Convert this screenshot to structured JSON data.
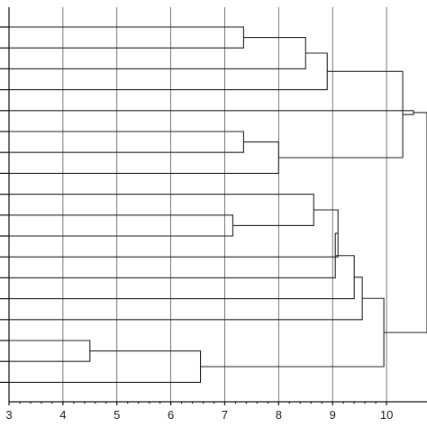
{
  "chart_data": {
    "type": "dendrogram",
    "orientation": "horizontal",
    "title": "",
    "xlabel": "",
    "ylabel": "",
    "xlim": [
      3,
      10.75
    ],
    "x_ticks": [
      3,
      4,
      5,
      6,
      7,
      8,
      9,
      10
    ],
    "grid": true,
    "leaf_count": 18,
    "link_color": "#222222",
    "merges": [
      {
        "id": "m1",
        "left": 0,
        "right": 1,
        "height": 7.35
      },
      {
        "id": "m2",
        "left": "m1",
        "right": 2,
        "height": 8.5
      },
      {
        "id": "m3",
        "left": "m2",
        "right": 3,
        "height": 8.9
      },
      {
        "id": "m4",
        "left": 5,
        "right": 6,
        "height": 7.35
      },
      {
        "id": "m5",
        "left": "m4",
        "right": 7,
        "height": 8.0
      },
      {
        "id": "m6",
        "left": "m3",
        "right": "m5",
        "height": 10.3
      },
      {
        "id": "m7",
        "left": 4,
        "right": "m6",
        "height": 10.5
      },
      {
        "id": "m8",
        "left": 9,
        "right": 10,
        "height": 7.15
      },
      {
        "id": "m9",
        "left": 8,
        "right": "m8",
        "height": 8.65
      },
      {
        "id": "m10",
        "left": "m9",
        "right": 11,
        "height": 9.1
      },
      {
        "id": "m11",
        "left": "m10",
        "right": 12,
        "height": 9.05
      },
      {
        "id": "m12",
        "left": "m11",
        "right": 13,
        "height": 9.4
      },
      {
        "id": "m13",
        "left": "m12",
        "right": 14,
        "height": 9.55
      },
      {
        "id": "m14",
        "left": 15,
        "right": 16,
        "height": 4.5
      },
      {
        "id": "m15",
        "left": "m14",
        "right": 17,
        "height": 6.55
      },
      {
        "id": "m16",
        "left": "m13",
        "right": "m15",
        "height": 9.95
      },
      {
        "id": "m17",
        "left": "m16",
        "right": "m7",
        "height": 10.75
      }
    ]
  }
}
